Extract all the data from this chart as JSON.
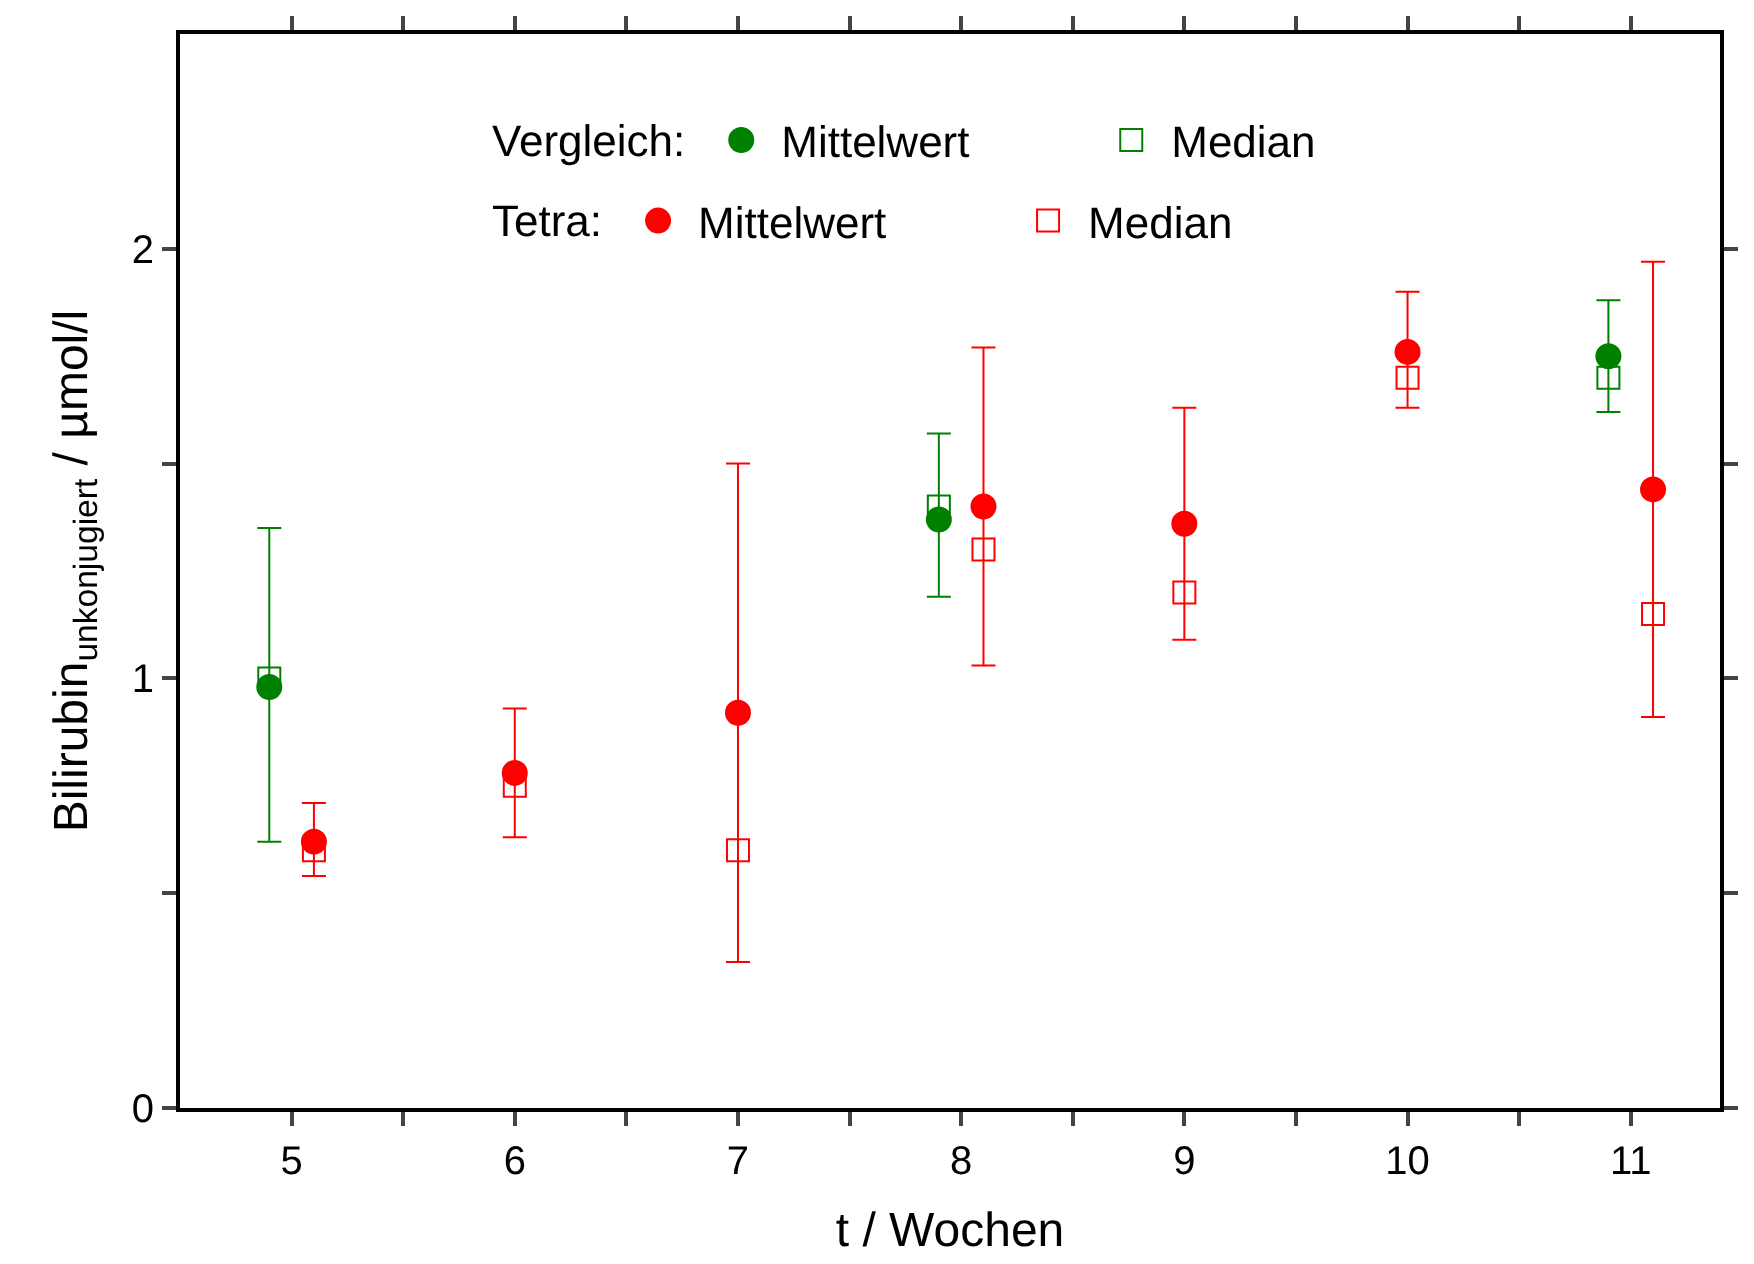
{
  "chart_data": {
    "type": "scatter",
    "xlabel": "t / Wochen",
    "ylabel": "Bilirubin$_{unkonjugiert}$ / µmol/l",
    "xlim": [
      4.5,
      11.4
    ],
    "ylim": [
      0,
      2.5
    ],
    "xticks": [
      5,
      6,
      7,
      8,
      9,
      10,
      11,
      {
        "value": 5.5,
        "label": null
      },
      {
        "value": 6.5,
        "label": null
      },
      {
        "value": 7.5,
        "label": null
      },
      {
        "value": 8.5,
        "label": null
      },
      {
        "value": 9.5,
        "label": null
      },
      {
        "value": 10.5,
        "label": null
      }
    ],
    "yticks": [
      0,
      1,
      2,
      {
        "value": 0.5,
        "label": null
      },
      {
        "value": 1.5,
        "label": null
      }
    ],
    "legend": "top",
    "annotations": [
      "Vergleich:",
      "Tetra:"
    ],
    "series": [
      {
        "name": "Mittelwert",
        "color": "#008000",
        "marker": "circle",
        "x": [
          4.9,
          7.9,
          10.9
        ],
        "values": [
          0.98,
          1.37,
          1.75
        ],
        "errors": [
          [
            0.62,
            1.35
          ],
          [
            1.19,
            1.57
          ],
          [
            1.62,
            1.88
          ]
        ]
      },
      {
        "name": "Median",
        "color": "#008000",
        "marker": "square",
        "x": [
          4.9,
          7.9,
          10.9
        ],
        "values": [
          1.0,
          1.4,
          1.7
        ]
      },
      {
        "name": "Mittelwert",
        "color": "#ff0000",
        "marker": "circle",
        "x": [
          5.1,
          6,
          7,
          8.1,
          9,
          10,
          11.1
        ],
        "values": [
          0.62,
          0.78,
          0.92,
          1.4,
          1.36,
          1.76,
          1.44
        ],
        "errors": [
          [
            0.54,
            0.71
          ],
          [
            0.63,
            0.93
          ],
          [
            0.34,
            1.5
          ],
          [
            1.03,
            1.77
          ],
          [
            1.09,
            1.63
          ],
          [
            1.63,
            1.9
          ],
          [
            0.91,
            1.97
          ]
        ]
      },
      {
        "name": "Median",
        "color": "#ff0000",
        "marker": "square",
        "x": [
          5.1,
          6,
          7,
          8.1,
          9,
          10,
          11.1
        ],
        "values": [
          0.6,
          0.75,
          0.6,
          1.3,
          1.2,
          1.7,
          1.15
        ]
      }
    ]
  }
}
